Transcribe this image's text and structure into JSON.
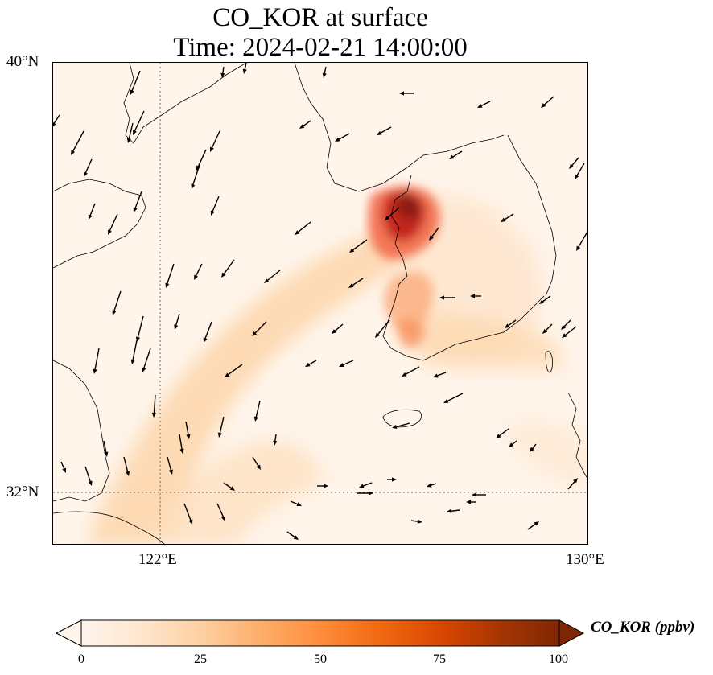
{
  "title": {
    "line1": "CO_KOR at surface",
    "line2": "Time: 2024-02-21 14:00:00"
  },
  "axes": {
    "lat_labels": [
      "40°N",
      "32°N"
    ],
    "lon_labels": [
      "122°E",
      "130°E"
    ],
    "lon_range": [
      120,
      130
    ],
    "lat_range": [
      31,
      40
    ],
    "gridlines": "dotted at 122°E and 32°N"
  },
  "colorbar": {
    "label": "CO_KOR (ppbv)",
    "ticks": [
      "0",
      "25",
      "50",
      "75",
      "100"
    ],
    "range": [
      0,
      100
    ],
    "extend": "both",
    "colormap": [
      "#fff5eb",
      "#fee6ce",
      "#fdd0a2",
      "#fdae6b",
      "#fd8d3c",
      "#f16913",
      "#d94801",
      "#a63603",
      "#7f2704"
    ]
  },
  "colors": {
    "land_outline": "#000000",
    "wind_arrow": "#000000",
    "grid": "#666666"
  },
  "map_content": {
    "field": "CO_KOR surface concentration",
    "max_region": "Seoul metropolitan area (~100 ppbv)",
    "secondary_maxima": "western Korea coast (~50-75 ppbv)",
    "plume": "orange plume extending southwest over Yellow Sea (~25-40 ppbv)",
    "overlay": "wind vectors (arrows)"
  }
}
